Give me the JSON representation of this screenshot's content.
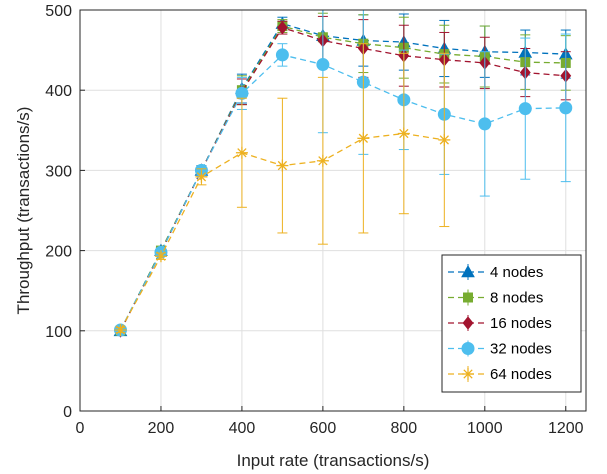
{
  "chart_data": {
    "type": "line",
    "xlabel": "Input rate (transactions/s)",
    "ylabel": "Throughput (transactions/s)",
    "xlim": [
      0,
      1250
    ],
    "ylim": [
      0,
      500
    ],
    "xticks": [
      0,
      200,
      400,
      600,
      800,
      1000,
      1200
    ],
    "yticks": [
      0,
      100,
      200,
      300,
      400,
      500
    ],
    "grid": true,
    "legend_position": "bottom-right",
    "series": [
      {
        "name": "4 nodes",
        "color": "#0072BD",
        "marker": "triangle",
        "x": [
          100,
          200,
          300,
          400,
          500,
          600,
          700,
          800,
          900,
          1000,
          1100,
          1200
        ],
        "y": [
          100,
          200,
          300,
          402,
          483,
          468,
          462,
          460,
          452,
          448,
          447,
          445
        ],
        "err": [
          3,
          4,
          6,
          18,
          8,
          32,
          32,
          35,
          35,
          32,
          28,
          30
        ]
      },
      {
        "name": "8 nodes",
        "color": "#77AC30",
        "marker": "square",
        "x": [
          100,
          200,
          300,
          400,
          500,
          600,
          700,
          800,
          900,
          1000,
          1100,
          1200
        ],
        "y": [
          100,
          200,
          300,
          400,
          480,
          466,
          458,
          453,
          445,
          442,
          435,
          434
        ],
        "err": [
          3,
          4,
          6,
          18,
          8,
          30,
          36,
          38,
          36,
          38,
          34,
          34
        ]
      },
      {
        "name": "16 nodes",
        "color": "#A2142F",
        "marker": "diamond",
        "x": [
          100,
          200,
          300,
          400,
          500,
          600,
          700,
          800,
          900,
          1000,
          1100,
          1200
        ],
        "y": [
          100,
          198,
          300,
          398,
          478,
          462,
          452,
          443,
          438,
          434,
          422,
          418
        ],
        "err": [
          3,
          4,
          6,
          16,
          8,
          30,
          36,
          38,
          34,
          32,
          30,
          30
        ]
      },
      {
        "name": "32 nodes",
        "color": "#4DBEEE",
        "marker": "circle",
        "x": [
          100,
          200,
          300,
          400,
          500,
          600,
          700,
          800,
          900,
          1000,
          1100,
          1200
        ],
        "y": [
          101,
          198,
          300,
          396,
          444,
          432,
          410,
          388,
          370,
          358,
          377,
          378
        ],
        "err": [
          3,
          4,
          6,
          20,
          14,
          85,
          90,
          62,
          75,
          90,
          88,
          92
        ]
      },
      {
        "name": "64 nodes",
        "color": "#EDB120",
        "marker": "asterisk",
        "x": [
          100,
          200,
          300,
          400,
          500,
          600,
          700,
          800,
          900
        ],
        "y": [
          101,
          193,
          292,
          322,
          306,
          312,
          340,
          346,
          338
        ],
        "err": [
          3,
          4,
          10,
          68,
          84,
          104,
          118,
          100,
          108
        ]
      }
    ]
  }
}
